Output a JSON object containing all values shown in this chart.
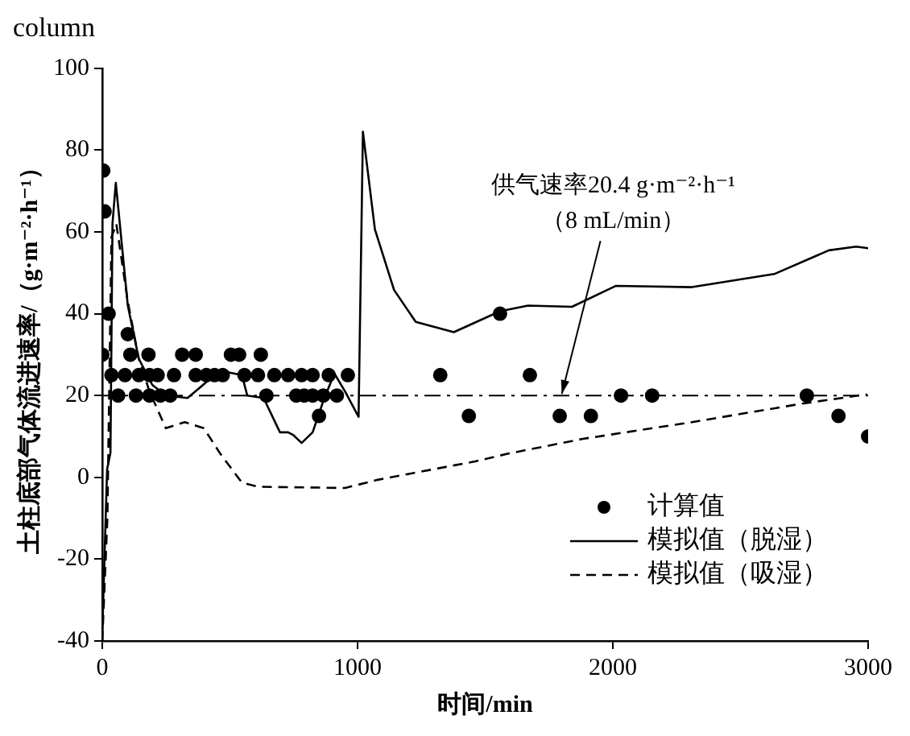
{
  "chart_data": {
    "type": "line",
    "title": "column",
    "xlabel": "时间/min",
    "ylabel": "土柱底部气体流进速率/（g·m⁻²·h⁻¹）",
    "xlim": [
      0,
      3000
    ],
    "xticks": [
      0,
      1000,
      2000,
      3000
    ],
    "ylim": [
      -40,
      100
    ],
    "yticks": [
      -40,
      -20,
      0,
      20,
      40,
      60,
      80,
      100
    ],
    "legend": "bottom right",
    "ref_lines": [
      {
        "axis": "y",
        "value": 20,
        "color": "#000000"
      }
    ],
    "annotations": [
      {
        "text": "供气速率20.4 g·m⁻²·h⁻¹\n（8 mL/min）",
        "x": 1800,
        "y": 20
      }
    ],
    "series": [
      {
        "name": "计算值",
        "type": "scatter",
        "marker": "circle",
        "color": "#000000",
        "x": [
          4,
          9,
          25,
          0,
          100,
          110,
          181,
          313,
          345,
          366,
          504,
          536,
          621,
          36,
          89,
          143,
          185,
          217,
          281,
          366,
          408,
          440,
          472,
          557,
          610,
          674,
          728,
          781,
          824,
          887,
          962,
          62,
          132,
          185,
          228,
          266,
          643,
          760,
          791,
          824,
          866,
          919,
          849,
          1324,
          1436,
          1558,
          1675,
          1792,
          1914,
          2032,
          2154,
          2760,
          2884,
          3000
        ],
        "values": [
          75,
          65,
          40,
          30,
          35,
          30,
          30,
          30,
          null,
          30,
          30,
          30,
          30,
          25,
          25,
          25,
          25,
          25,
          25,
          25,
          25,
          25,
          25,
          25,
          25,
          25,
          25,
          25,
          25,
          25,
          25,
          20,
          20,
          20,
          20,
          20,
          20,
          20,
          20,
          20,
          20,
          20,
          15,
          25,
          15,
          40,
          25,
          15,
          15,
          20,
          20,
          20,
          15,
          10
        ]
      },
      {
        "name": "模拟值（脱湿）",
        "marker": "none",
        "line_style": "solid",
        "color": "#000000",
        "x": [
          0,
          19,
          32,
          40,
          53,
          100,
          143,
          196,
          249,
          334,
          440,
          483,
          547,
          568,
          632,
          696,
          728,
          749,
          781,
          824,
          866,
          909,
          951,
          1004,
          1021,
          1068,
          1143,
          1228,
          1377,
          1558,
          1668,
          1840,
          2011,
          2310,
          2632,
          2846,
          2953,
          3000
        ],
        "values": [
          -38,
          2,
          6,
          62,
          72,
          42,
          29,
          22.6,
          20,
          19.4,
          25,
          25.8,
          25,
          20,
          19.4,
          11,
          11,
          10.3,
          8.4,
          11,
          18.7,
          25.4,
          21,
          14.8,
          84.5,
          60.6,
          45.8,
          38,
          35.5,
          40.6,
          42,
          41.7,
          46.8,
          46.5,
          49.7,
          55.5,
          56.4,
          56
        ]
      },
      {
        "name": "模拟值（吸湿）",
        "marker": "none",
        "line_style": "dashed",
        "color": "#000000",
        "x": [
          0,
          20,
          36,
          55,
          100,
          143,
          185,
          249,
          323,
          398,
          462,
          547,
          611,
          951,
          1079,
          1460,
          1590,
          1882,
          2310,
          2739,
          2996
        ],
        "values": [
          -40,
          -10,
          58.7,
          62,
          43,
          29,
          21,
          12,
          13.5,
          12,
          5.8,
          -1.3,
          -2.3,
          -2.6,
          -0.6,
          3.9,
          5.8,
          9.4,
          13.5,
          18,
          20.3
        ]
      }
    ]
  }
}
